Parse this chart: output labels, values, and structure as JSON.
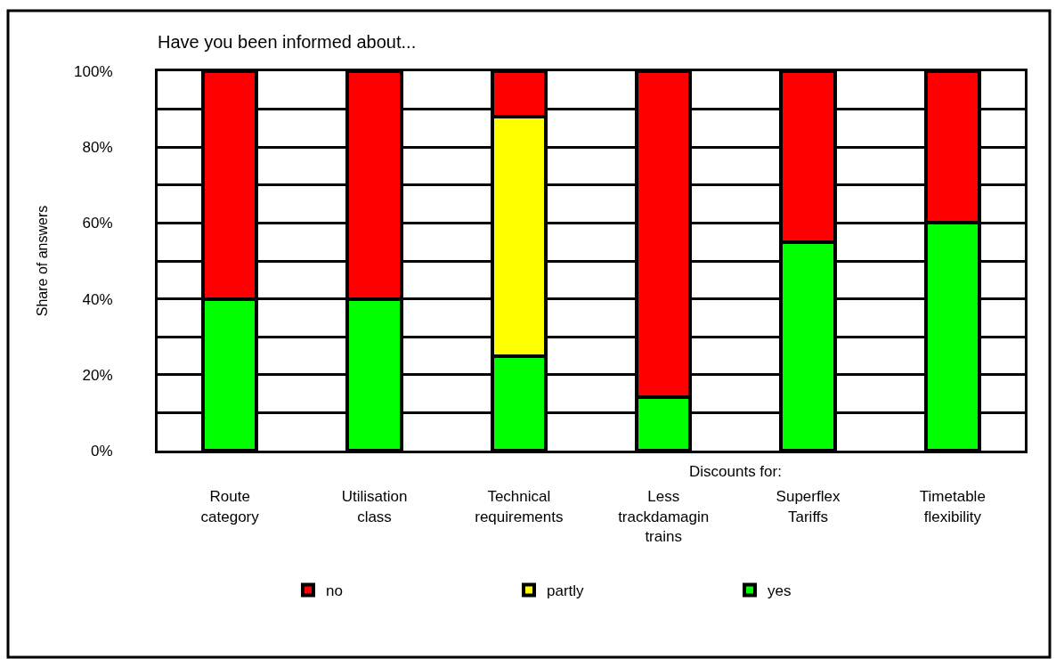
{
  "chart_data": {
    "type": "bar",
    "title": "Have you been informed about...",
    "ylabel": "Share of answers",
    "categories": [
      "Route\ncategory",
      "Utilisation\nclass",
      "Technical\nrequirements",
      "Less\ntrackdamagin\ntrains",
      "Superflex\nTariffs",
      "Timetable\nflexibility"
    ],
    "series": [
      {
        "name": "yes",
        "color": "#00ff00",
        "values": [
          40,
          40,
          25,
          14,
          55,
          60
        ]
      },
      {
        "name": "partly",
        "color": "#ffff00",
        "values": [
          null,
          null,
          63,
          null,
          null,
          null
        ]
      },
      {
        "name": "no",
        "color": "#ff0000",
        "values": [
          60,
          60,
          12,
          86,
          45,
          40
        ]
      }
    ],
    "stacked": true,
    "ylim": [
      0,
      100
    ],
    "yticks": [
      {
        "value": 0,
        "label": "0%"
      },
      {
        "value": 10,
        "label": null
      },
      {
        "value": 20,
        "label": "20%"
      },
      {
        "value": 30,
        "label": null
      },
      {
        "value": 40,
        "label": "40%"
      },
      {
        "value": 50,
        "label": null
      },
      {
        "value": 60,
        "label": "60%"
      },
      {
        "value": 70,
        "label": null
      },
      {
        "value": 80,
        "label": "80%"
      },
      {
        "value": 90,
        "label": null
      },
      {
        "value": 100,
        "label": "100%"
      }
    ],
    "grid": "y",
    "legend": "bottom",
    "annotations": [
      "Discounts for:"
    ]
  }
}
